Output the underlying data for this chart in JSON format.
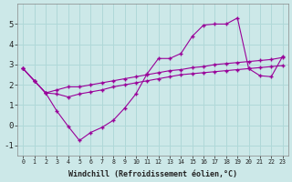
{
  "xlabel": "Windchill (Refroidissement éolien,°C)",
  "background_color": "#cce8e8",
  "grid_color": "#b0d8d8",
  "line_color": "#990099",
  "x": [
    0,
    1,
    2,
    3,
    4,
    5,
    6,
    7,
    8,
    9,
    10,
    11,
    12,
    13,
    14,
    15,
    16,
    17,
    18,
    19,
    20,
    21,
    22,
    23
  ],
  "line_zigzag": [
    2.8,
    2.2,
    1.6,
    0.7,
    -0.05,
    -0.75,
    -0.35,
    -0.1,
    0.25,
    0.85,
    1.55,
    2.55,
    3.3,
    3.3,
    3.55,
    4.4,
    4.95,
    5.0,
    5.0,
    5.3,
    2.8,
    2.45,
    2.4,
    3.4
  ],
  "line_straight": [
    2.8,
    2.2,
    1.6,
    1.75,
    1.9,
    1.9,
    2.0,
    2.1,
    2.2,
    2.3,
    2.4,
    2.5,
    2.6,
    2.7,
    2.75,
    2.85,
    2.9,
    3.0,
    3.05,
    3.1,
    3.15,
    3.2,
    3.25,
    3.35
  ],
  "line_mid": [
    2.8,
    2.2,
    1.6,
    1.55,
    1.4,
    1.55,
    1.65,
    1.75,
    1.9,
    2.0,
    2.1,
    2.2,
    2.3,
    2.4,
    2.5,
    2.55,
    2.6,
    2.65,
    2.7,
    2.75,
    2.8,
    2.85,
    2.9,
    2.95
  ],
  "ylim": [
    -1.5,
    6.0
  ],
  "yticks": [
    -1,
    0,
    1,
    2,
    3,
    4,
    5
  ],
  "xlim": [
    -0.5,
    23.5
  ],
  "figsize": [
    3.2,
    2.0
  ],
  "dpi": 100
}
